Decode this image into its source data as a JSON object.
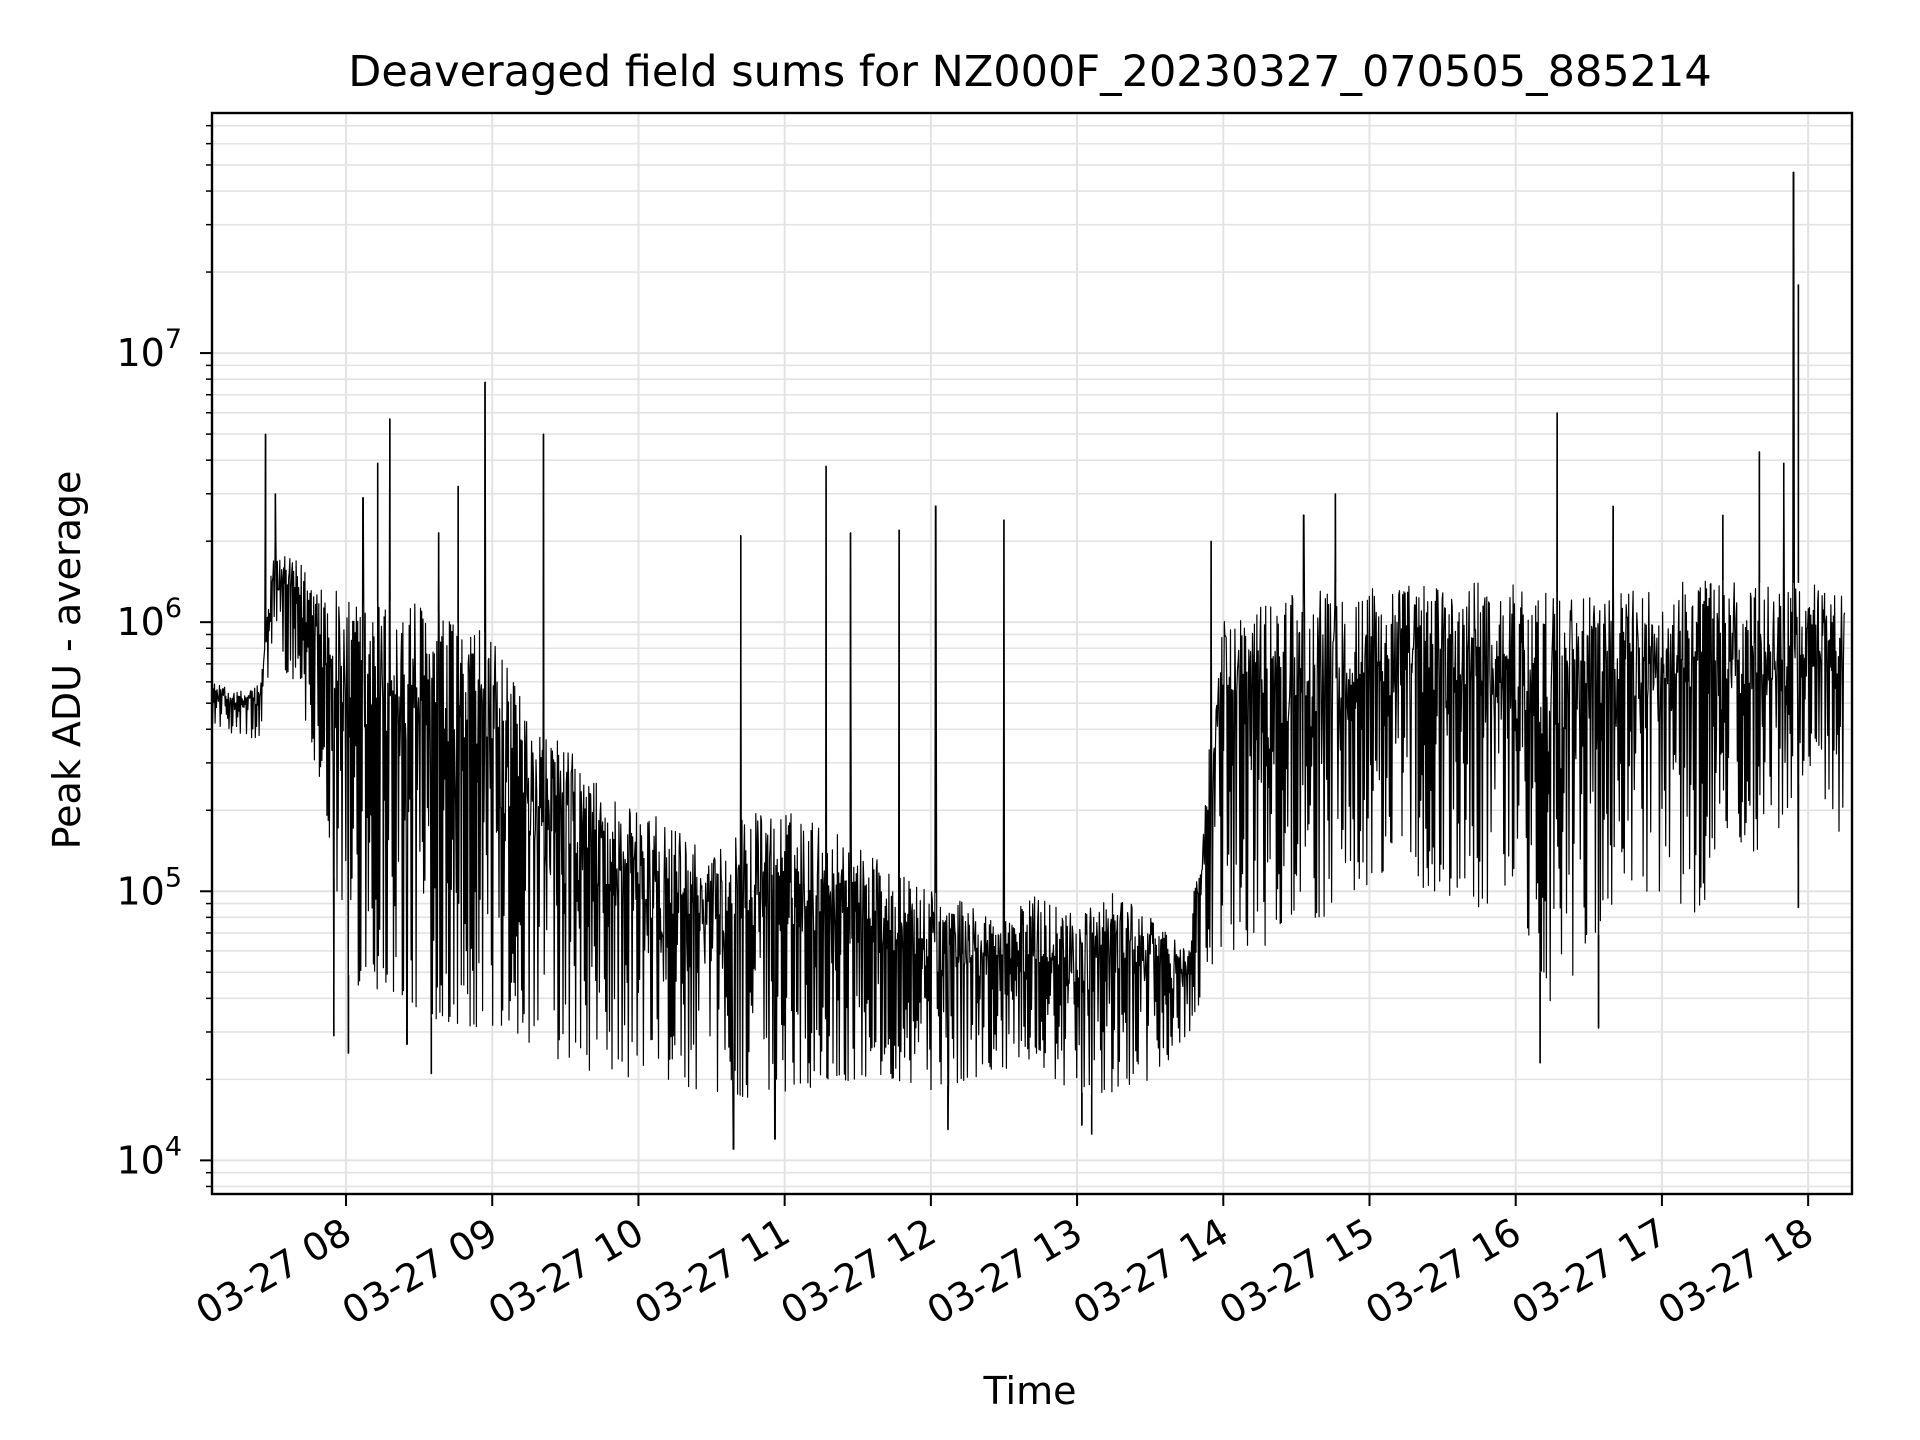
{
  "chart_data": {
    "type": "line",
    "title": "Deaveraged field sums for NZ000F_20230327_070505_885214",
    "xlabel": "Time",
    "ylabel": "Peak ADU - average",
    "yscale": "log",
    "ylim": [
      7500,
      78000000
    ],
    "xlim": [
      "03-27 07:05",
      "03-27 18:18"
    ],
    "grid": true,
    "x_ticks": [
      "03-27 08",
      "03-27 09",
      "03-27 10",
      "03-27 11",
      "03-27 12",
      "03-27 13",
      "03-27 14",
      "03-27 15",
      "03-27 16",
      "03-27 17",
      "03-27 18"
    ],
    "y_ticks": [
      {
        "value": 10000,
        "base": "10",
        "exp": "4"
      },
      {
        "value": 100000,
        "base": "10",
        "exp": "5"
      },
      {
        "value": 1000000,
        "base": "10",
        "exp": "6"
      },
      {
        "value": 10000000,
        "base": "10",
        "exp": "7"
      }
    ],
    "line_color": "#000000",
    "series": [
      {
        "x": [
          "07:05",
          "07:15",
          "07:25",
          "07:30",
          "07:40",
          "07:50",
          "08:00",
          "08:10",
          "08:20",
          "08:30",
          "08:45",
          "09:00",
          "09:15",
          "09:30",
          "09:45",
          "10:00",
          "10:15",
          "10:30",
          "10:45",
          "11:00",
          "11:15",
          "11:30",
          "11:45",
          "12:00",
          "12:15",
          "12:30",
          "12:45",
          "13:00",
          "13:15",
          "13:30",
          "13:45",
          "14:00",
          "14:15",
          "14:30",
          "14:45",
          "15:00",
          "15:15",
          "15:30",
          "15:45",
          "16:00",
          "16:15",
          "16:30",
          "16:45",
          "17:00",
          "17:15",
          "17:30",
          "17:45",
          "18:00",
          "18:15"
        ],
        "high": [
          600000,
          550000,
          600000,
          1800000,
          1700000,
          1500000,
          1200000,
          1200000,
          1200000,
          1200000,
          1000000,
          900000,
          450000,
          350000,
          250000,
          200000,
          180000,
          130000,
          200000,
          200000,
          180000,
          150000,
          120000,
          100000,
          90000,
          80000,
          100000,
          80000,
          100000,
          80000,
          60000,
          1000000,
          1200000,
          1300000,
          1400000,
          1400000,
          1400000,
          1400000,
          1400000,
          1400000,
          1300000,
          1300000,
          1300000,
          1400000,
          1500000,
          1400000,
          1400000,
          1400000,
          1300000
        ],
        "low": [
          420000,
          380000,
          350000,
          900000,
          500000,
          250000,
          50000,
          40000,
          40000,
          35000,
          32000,
          30000,
          27000,
          22000,
          21000,
          20000,
          19000,
          18000,
          17000,
          18000,
          19000,
          20000,
          20000,
          18000,
          20000,
          22000,
          21000,
          18000,
          17000,
          20000,
          28000,
          60000,
          60000,
          80000,
          80000,
          100000,
          90000,
          100000,
          80000,
          100000,
          35000,
          60000,
          100000,
          100000,
          80000,
          100000,
          150000,
          300000,
          150000
        ]
      }
    ],
    "spikes": [
      {
        "x": "07:27",
        "y": 5000000
      },
      {
        "x": "07:31",
        "y": 3000000
      },
      {
        "x": "08:07",
        "y": 2900000
      },
      {
        "x": "08:13",
        "y": 3900000
      },
      {
        "x": "08:18",
        "y": 5700000
      },
      {
        "x": "08:38",
        "y": 2150000
      },
      {
        "x": "08:46",
        "y": 3200000
      },
      {
        "x": "08:57",
        "y": 7800000
      },
      {
        "x": "09:21",
        "y": 5000000
      },
      {
        "x": "10:42",
        "y": 2100000
      },
      {
        "x": "11:17",
        "y": 3800000
      },
      {
        "x": "11:27",
        "y": 2150000
      },
      {
        "x": "11:47",
        "y": 2200000
      },
      {
        "x": "12:02",
        "y": 2700000
      },
      {
        "x": "12:30",
        "y": 2400000
      },
      {
        "x": "13:55",
        "y": 2000000
      },
      {
        "x": "14:33",
        "y": 2500000
      },
      {
        "x": "14:46",
        "y": 3000000
      },
      {
        "x": "16:17",
        "y": 6000000
      },
      {
        "x": "16:40",
        "y": 2700000
      },
      {
        "x": "17:25",
        "y": 2500000
      },
      {
        "x": "17:40",
        "y": 4300000
      },
      {
        "x": "17:54",
        "y": 47000000
      },
      {
        "x": "17:56",
        "y": 18000000
      },
      {
        "x": "17:50",
        "y": 3900000
      }
    ],
    "dips": [
      {
        "x": "07:55",
        "y": 29000
      },
      {
        "x": "08:01",
        "y": 25000
      },
      {
        "x": "08:25",
        "y": 27000
      },
      {
        "x": "08:35",
        "y": 21000
      },
      {
        "x": "10:39",
        "y": 11000
      },
      {
        "x": "10:56",
        "y": 12000
      },
      {
        "x": "12:07",
        "y": 13000
      },
      {
        "x": "13:06",
        "y": 12500
      },
      {
        "x": "13:02",
        "y": 13500
      },
      {
        "x": "16:10",
        "y": 23000
      },
      {
        "x": "16:34",
        "y": 31000
      },
      {
        "x": "17:56",
        "y": 87000
      }
    ]
  }
}
